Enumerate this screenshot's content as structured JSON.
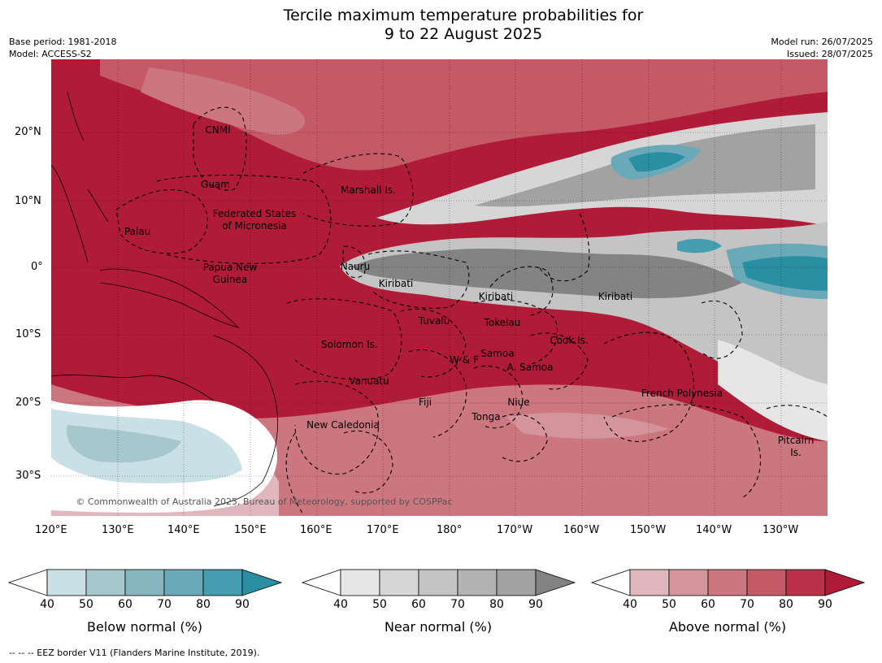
{
  "title_line1": "Tercile maximum temperature probabilities for",
  "title_line2": "9 to 22 August 2025",
  "base_period": "Base period: 1981-2018",
  "model": "Model: ACCESS-S2",
  "model_run": "Model run: 26/07/2025",
  "issued": "Issued: 28/07/2025",
  "copyright": "© Commonwealth of Australia 2025, Bureau of Meteorology, supported by COSPPac",
  "lat_labels": [
    "20°N",
    "10°N",
    "0°",
    "10°S",
    "20°S",
    "30°S"
  ],
  "lon_labels": [
    "120°E",
    "130°E",
    "140°E",
    "150°E",
    "160°E",
    "170°E",
    "180°",
    "170°W",
    "160°W",
    "150°W",
    "140°W",
    "130°W"
  ],
  "region_labels": [
    "CNMI",
    "Guam",
    "Marshall Is.",
    "Palau",
    "Federated States",
    "of Micronesia",
    "Nauru",
    "Papua New",
    "Guinea",
    "Kiribati",
    "Kiribati",
    "Kiribati",
    "Tuvalu",
    "Tokelau",
    "Solomon Is.",
    "Cook Is.",
    "Samoa",
    "W & F",
    "A. Samoa",
    "Vanuatu",
    "Fiji",
    "Niue",
    "French Polynesia",
    "Tonga",
    "New Caledonia",
    "Pitcairn",
    "Is."
  ],
  "colorbars": [
    {
      "label": "Below normal (%)",
      "ticks": [
        "40",
        "50",
        "60",
        "70",
        "80",
        "90"
      ],
      "colors": [
        "#c9e0e6",
        "#a6c7cc",
        "#88b6bf",
        "#6aaab8",
        "#449eb0",
        "#2a8fa3"
      ]
    },
    {
      "label": "Near normal (%)",
      "ticks": [
        "40",
        "50",
        "60",
        "70",
        "80",
        "90"
      ],
      "colors": [
        "#e6e6e6",
        "#d6d6d6",
        "#c4c4c4",
        "#b3b3b3",
        "#a2a2a2",
        "#838383"
      ]
    },
    {
      "label": "Above normal (%)",
      "ticks": [
        "40",
        "50",
        "60",
        "70",
        "80",
        "90"
      ],
      "colors": [
        "#e1b7bd",
        "#d4949b",
        "#cc7780",
        "#c55a67",
        "#ba3249",
        "#b01b37"
      ]
    }
  ],
  "footnote": "--  --  -- EEZ border V11 (Flanders Marine Institute, 2019).",
  "colors": {
    "above_dominant": "#b01b37",
    "near_dominant": "#838383",
    "below_dominant": "#2a8fa3"
  }
}
